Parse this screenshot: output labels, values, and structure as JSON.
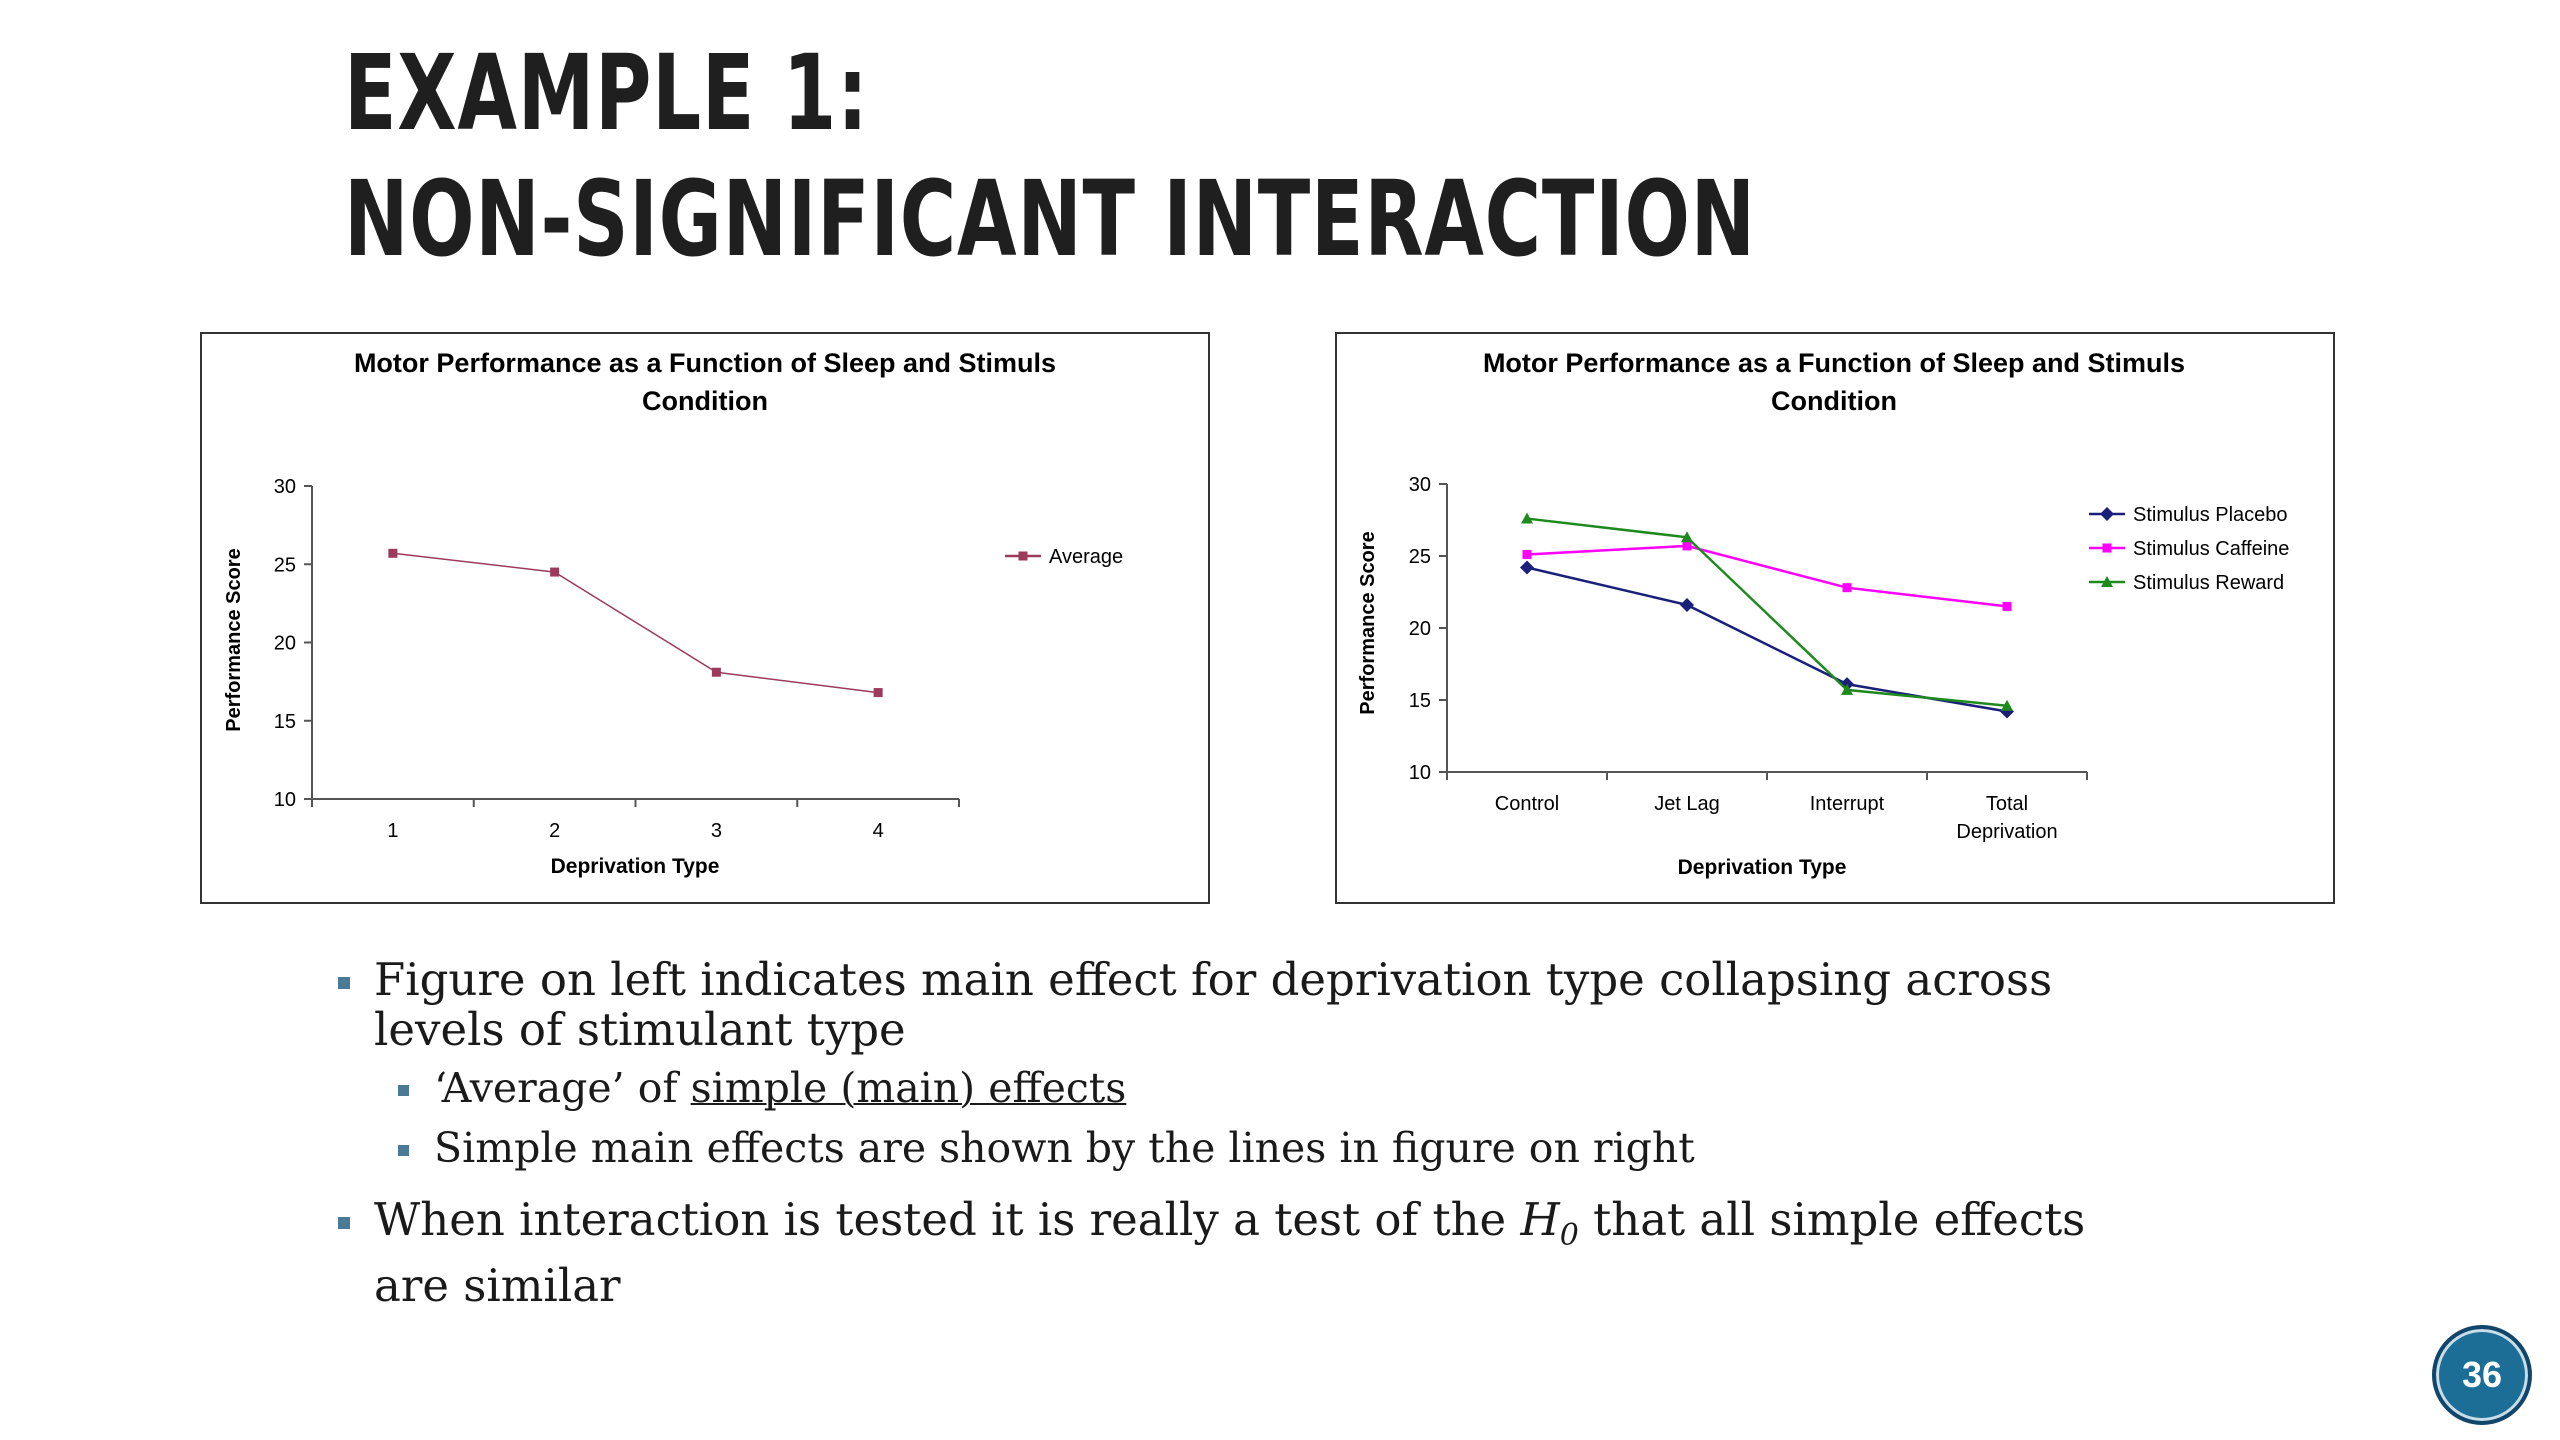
{
  "slide": {
    "title_line1": "EXAMPLE 1:",
    "title_line2": "NON-SIGNIFICANT INTERACTION",
    "page_number": "36",
    "accent_color": "#1c6e96"
  },
  "bullets": {
    "b1": "Figure on left indicates main effect for deprivation type collapsing across levels of stimulant type",
    "b1a_prefix": "‘Average’ of ",
    "b1a_link": "simple (main) effects",
    "b1b": "Simple main effects are shown by the lines in figure on right",
    "b2_prefix": "When interaction is tested it is really a test of the ",
    "b2_h": "H",
    "b2_sub": "0",
    "b2_suffix": " that all simple effects are similar"
  },
  "chart_data": [
    {
      "type": "line",
      "title": "Motor Performance as a Function of Sleep and Stimuls Condition",
      "title_lines": [
        "Motor Performance as a Function of Sleep and Stimuls",
        "Condition"
      ],
      "xlabel": "Deprivation Type",
      "ylabel": "Performance Score",
      "categories": [
        "1",
        "2",
        "3",
        "4"
      ],
      "ylim": [
        10,
        30
      ],
      "yticks": [
        10,
        15,
        20,
        25,
        30
      ],
      "grid": false,
      "legend": "right",
      "series": [
        {
          "name": "Average",
          "color": "#9b3a5a",
          "marker": "square",
          "values": [
            25.7,
            24.5,
            18.1,
            16.8
          ]
        }
      ]
    },
    {
      "type": "line",
      "title": "Motor Performance as a Function of Sleep and Stimuls Condition",
      "title_lines": [
        "Motor Performance as a Function of Sleep and Stimuls",
        "Condition"
      ],
      "xlabel": "Deprivation Type",
      "ylabel": "Performance Score",
      "categories": [
        "Control",
        "Jet Lag",
        "Interrupt",
        "Total Deprivation"
      ],
      "category_lines": [
        [
          "Control"
        ],
        [
          "Jet Lag"
        ],
        [
          "Interrupt"
        ],
        [
          "Total",
          "Deprivation"
        ]
      ],
      "ylim": [
        10,
        30
      ],
      "yticks": [
        10,
        15,
        20,
        25,
        30
      ],
      "grid": false,
      "legend": "top-right",
      "series": [
        {
          "name": "Stimulus Placebo",
          "color": "#1a1f7a",
          "marker": "diamond",
          "values": [
            24.2,
            21.6,
            16.1,
            14.2
          ]
        },
        {
          "name": "Stimulus Caffeine",
          "color": "#ff00ff",
          "marker": "square",
          "values": [
            25.1,
            25.7,
            22.8,
            21.5
          ]
        },
        {
          "name": "Stimulus Reward",
          "color": "#1e8a1e",
          "marker": "triangle",
          "values": [
            27.6,
            26.3,
            15.7,
            14.6
          ]
        }
      ]
    }
  ]
}
